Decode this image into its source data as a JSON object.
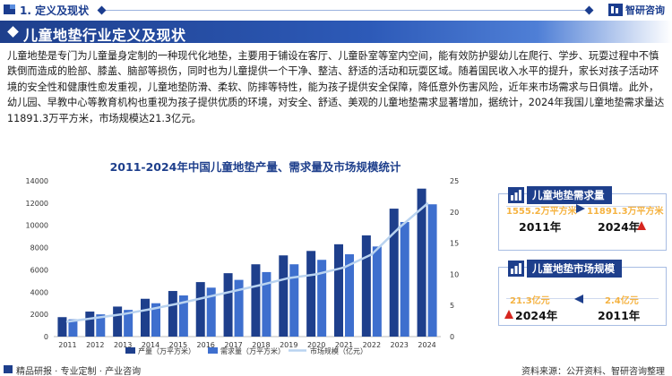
{
  "header": {
    "section_title": "1. 定义及现状",
    "logo_text": "智研咨询"
  },
  "title_bar": {
    "title": "儿童地垫行业定义及现状"
  },
  "paragraph": "儿童地垫是专门为儿童量身定制的一种现代化地垫，主要用于铺设在客厅、儿童卧室等室内空间，能有效防护婴幼儿在爬行、学步、玩耍过程中不慎跌倒而造成的脸部、膝盖、脑部等损伤，同时也为儿童提供一个干净、整洁、舒适的活动和玩耍区域。随着国民收入水平的提升，家长对孩子活动环境的安全性和健康性愈发重视，儿童地垫防滑、柔软、防摔等特性，能为孩子提供安全保障，降低意外伤害风险，近年来市场需求与日俱增。此外，幼儿园、早教中心等教育机构也重视为孩子提供优质的环境，对安全、舒适、美观的儿童地垫需求显著增加，据统计，2024年我国儿童地垫需求量达11891.3万平方米，市场规模达21.3亿元。",
  "chart_data": {
    "type": "bar",
    "title": "2011-2024年中国儿童地垫产量、需求量及市场规模统计",
    "categories": [
      "2011",
      "2012",
      "2013",
      "2014",
      "2015",
      "2016",
      "2017",
      "2018",
      "2019",
      "2020",
      "2021",
      "2022",
      "2023",
      "2024"
    ],
    "series": [
      {
        "name": "产量（万平方米）",
        "type": "bar",
        "axis": "left",
        "color": "#1e3f8c",
        "values": [
          1750,
          2250,
          2700,
          3400,
          4100,
          4900,
          5700,
          6500,
          7300,
          7700,
          8300,
          9100,
          11500,
          13300
        ]
      },
      {
        "name": "需求量（万平方米）",
        "type": "bar",
        "axis": "left",
        "color": "#3e6fce",
        "values": [
          1555.2,
          2000,
          2400,
          3000,
          3700,
          4400,
          5100,
          5800,
          6500,
          6900,
          7400,
          8100,
          10300,
          11891.3
        ]
      },
      {
        "name": "市场规模（亿元）",
        "type": "line",
        "axis": "right",
        "color": "#b9d3f0",
        "values": [
          2.4,
          3.0,
          3.6,
          4.4,
          5.3,
          6.3,
          7.3,
          8.3,
          9.4,
          10.0,
          11.1,
          13.2,
          17.5,
          21.3
        ]
      }
    ],
    "y_left": {
      "min": 0,
      "max": 14000,
      "ticks": [
        0,
        2000,
        4000,
        6000,
        8000,
        10000,
        12000,
        14000
      ]
    },
    "y_right": {
      "min": 0,
      "max": 25,
      "ticks": [
        0,
        5,
        10,
        15,
        20,
        25
      ]
    },
    "legend": "bottom",
    "grid": false
  },
  "panels": {
    "demand": {
      "title": "儿童地垫需求量",
      "start_value": "1555.2万平方米",
      "start_year": "2011年",
      "end_value": "11891.3万平方米",
      "end_year": "2024年",
      "colors": {
        "value": "#f5b342",
        "up_arrow": "#d6261f"
      }
    },
    "market": {
      "title": "儿童地垫市场规模",
      "end_value": "21.3亿元",
      "end_year": "2024年",
      "start_value": "2.4亿元",
      "start_year": "2011年"
    }
  },
  "footer": {
    "left_text": "精品研报 · 专业定制 · 产业咨询",
    "right_text": "资料来源：公开资料、智研咨询整理"
  }
}
